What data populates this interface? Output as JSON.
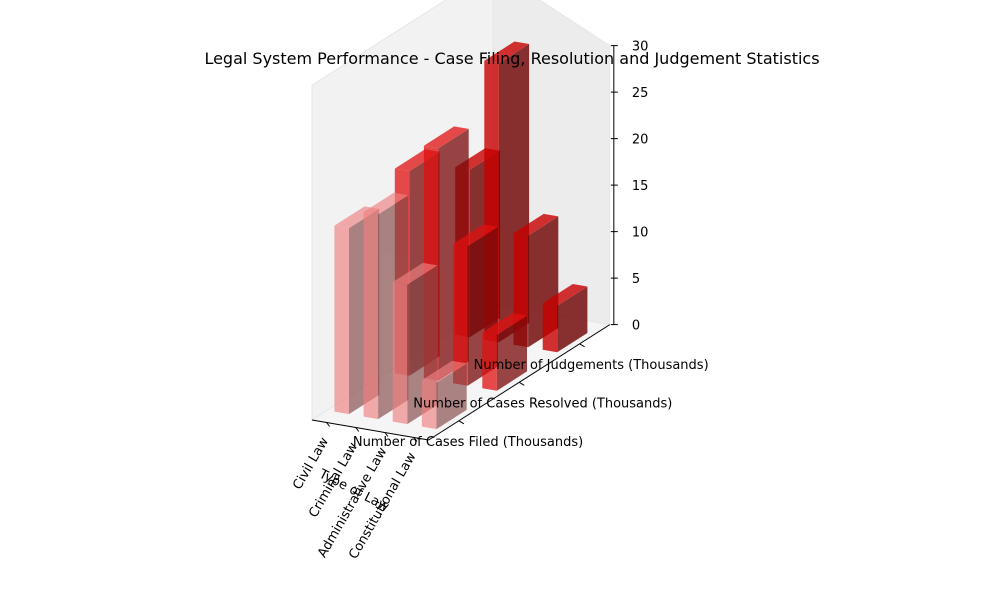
{
  "chart_data": {
    "type": "bar3d",
    "title": "Legal System Performance - Case Filing, Resolution and Judgement Statistics",
    "xlabel": "Type of Law",
    "categories": [
      "Civil Law",
      "Criminal Law",
      "Administrative Law",
      "Constitutional Law"
    ],
    "series": [
      {
        "name": "Number of Cases Filed (Thousands)",
        "values": [
          20,
          22,
          15,
          5
        ]
      },
      {
        "name": "Number of Cases Resolved (Thousands)",
        "values": [
          22,
          25,
          15,
          6
        ]
      },
      {
        "name": "Number of Judgements (Thousands)",
        "values": [
          18,
          30,
          12,
          5
        ]
      }
    ],
    "zlim": [
      0,
      30
    ],
    "zticks": [
      0,
      5,
      10,
      15,
      20,
      25,
      30
    ],
    "colors": {
      "filed": "#f08080",
      "resolved": "#e01010",
      "judgements": "#c80000"
    },
    "grid": true
  }
}
